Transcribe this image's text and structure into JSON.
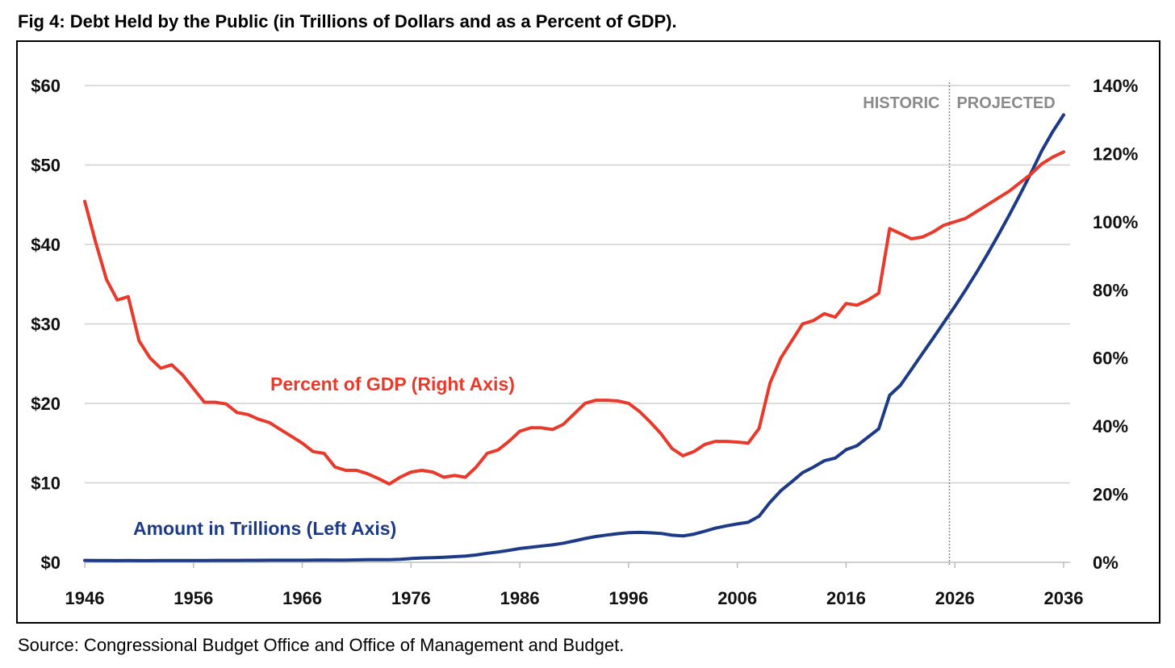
{
  "chart_data": {
    "type": "line",
    "title": "Fig 4: Debt Held by the Public (in Trillions of Dollars and as a Percent of GDP).",
    "source": "Source: Congressional Budget Office and Office of Management and Budget.",
    "xlabel": "",
    "ylabel_left": "",
    "ylabel_right": "",
    "xlim": [
      1946,
      2036
    ],
    "ylim_left": [
      0,
      60
    ],
    "ylim_right": [
      0,
      140
    ],
    "grid": true,
    "x_ticks": [
      "1946",
      "1956",
      "1966",
      "1976",
      "1986",
      "1996",
      "2006",
      "2016",
      "2026",
      "2036"
    ],
    "y_left_ticks": [
      "$0",
      "$10",
      "$20",
      "$30",
      "$40",
      "$50",
      "$60"
    ],
    "y_right_ticks": [
      "0%",
      "20%",
      "40%",
      "60%",
      "80%",
      "100%",
      "120%",
      "140%"
    ],
    "era_split_year": 2025.5,
    "era_labels": {
      "historic": "HISTORIC",
      "projected": "PROJECTED"
    },
    "x_start": 1946,
    "series": [
      {
        "name": "Amount in Trillions (Left Axis)",
        "axis": "left",
        "color": "#1c3a85",
        "values": [
          0.24,
          0.22,
          0.22,
          0.21,
          0.22,
          0.21,
          0.21,
          0.22,
          0.22,
          0.23,
          0.22,
          0.22,
          0.24,
          0.24,
          0.24,
          0.25,
          0.25,
          0.26,
          0.26,
          0.26,
          0.26,
          0.27,
          0.29,
          0.28,
          0.28,
          0.3,
          0.32,
          0.34,
          0.34,
          0.39,
          0.48,
          0.55,
          0.59,
          0.64,
          0.71,
          0.79,
          0.92,
          1.14,
          1.3,
          1.5,
          1.74,
          1.89,
          2.05,
          2.19,
          2.41,
          2.69,
          3.0,
          3.25,
          3.43,
          3.6,
          3.73,
          3.77,
          3.72,
          3.63,
          3.41,
          3.32,
          3.54,
          3.91,
          4.3,
          4.59,
          4.83,
          5.04,
          5.8,
          7.54,
          9.02,
          10.13,
          11.28,
          11.98,
          12.78,
          13.12,
          14.17,
          14.67,
          15.75,
          16.8,
          21.02,
          22.28,
          24.25,
          26.24,
          28.2,
          30.2,
          32.2,
          34.3,
          36.5,
          38.8,
          41.2,
          43.7,
          46.3,
          49.0,
          51.8,
          54.2,
          56.3
        ]
      },
      {
        "name": "Percent of GDP (Right Axis)",
        "axis": "right",
        "color": "#e8392b",
        "values": [
          106,
          94,
          83,
          77,
          78,
          65,
          60,
          57,
          58,
          55,
          51,
          47,
          47,
          46.5,
          44,
          43.4,
          42,
          41,
          39,
          37,
          35,
          32.5,
          32,
          28,
          27,
          27,
          26,
          24.6,
          23,
          25,
          26.5,
          27,
          26.5,
          25,
          25.5,
          25,
          28,
          32,
          33,
          35.5,
          38.5,
          39.5,
          39.5,
          39,
          40.5,
          43.6,
          46.7,
          47.6,
          47.6,
          47.4,
          46.7,
          44.3,
          41.2,
          37.7,
          33.4,
          31.3,
          32.5,
          34.6,
          35.5,
          35.5,
          35.3,
          35,
          39.3,
          52.6,
          60,
          65,
          70,
          71,
          73,
          72,
          76,
          75.5,
          77,
          79,
          98,
          96.5,
          95,
          95.5,
          97,
          99,
          100,
          101,
          103,
          105,
          107,
          109,
          111.5,
          114,
          117,
          119,
          120.5
        ]
      }
    ]
  }
}
